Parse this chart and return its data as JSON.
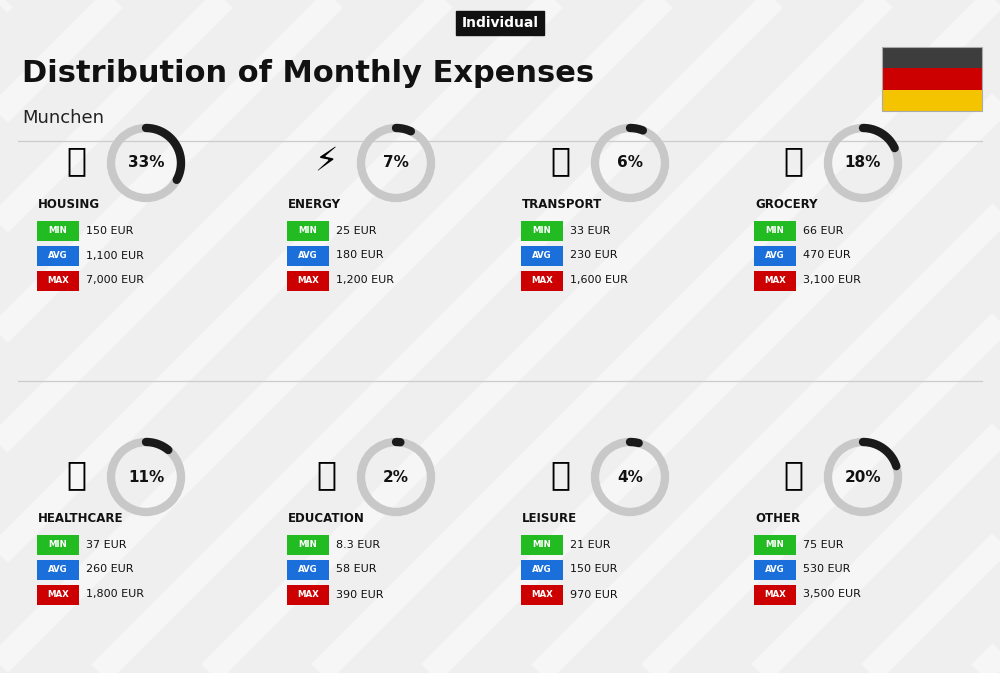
{
  "title": "Distribution of Monthly Expenses",
  "subtitle": "Munchen",
  "tag": "Individual",
  "bg_color": "#efefef",
  "categories": [
    {
      "name": "HOUSING",
      "pct": 33,
      "min_val": "150 EUR",
      "avg_val": "1,100 EUR",
      "max_val": "7,000 EUR",
      "row": 0,
      "col": 0
    },
    {
      "name": "ENERGY",
      "pct": 7,
      "min_val": "25 EUR",
      "avg_val": "180 EUR",
      "max_val": "1,200 EUR",
      "row": 0,
      "col": 1
    },
    {
      "name": "TRANSPORT",
      "pct": 6,
      "min_val": "33 EUR",
      "avg_val": "230 EUR",
      "max_val": "1,600 EUR",
      "row": 0,
      "col": 2
    },
    {
      "name": "GROCERY",
      "pct": 18,
      "min_val": "66 EUR",
      "avg_val": "470 EUR",
      "max_val": "3,100 EUR",
      "row": 0,
      "col": 3
    },
    {
      "name": "HEALTHCARE",
      "pct": 11,
      "min_val": "37 EUR",
      "avg_val": "260 EUR",
      "max_val": "1,800 EUR",
      "row": 1,
      "col": 0
    },
    {
      "name": "EDUCATION",
      "pct": 2,
      "min_val": "8.3 EUR",
      "avg_val": "58 EUR",
      "max_val": "390 EUR",
      "row": 1,
      "col": 1
    },
    {
      "name": "LEISURE",
      "pct": 4,
      "min_val": "21 EUR",
      "avg_val": "150 EUR",
      "max_val": "970 EUR",
      "row": 1,
      "col": 2
    },
    {
      "name": "OTHER",
      "pct": 20,
      "min_val": "75 EUR",
      "avg_val": "530 EUR",
      "max_val": "3,500 EUR",
      "row": 1,
      "col": 3
    }
  ],
  "color_min": "#22bb22",
  "color_avg": "#1a6fdb",
  "color_max": "#cc0000",
  "flag_colors": [
    "#3d3d3d",
    "#cc0000",
    "#f5c400"
  ],
  "arc_color_filled": "#1a1a1a",
  "arc_color_bg": "#c8c8c8"
}
